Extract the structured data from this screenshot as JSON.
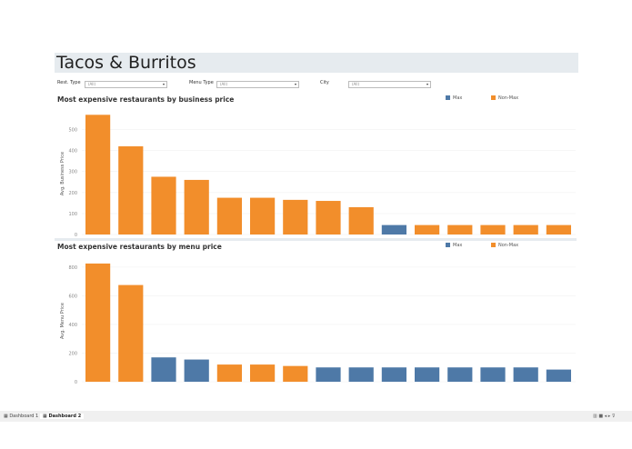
{
  "title": "Tacos & Burritos",
  "filters": [
    {
      "label": "Rest. Type",
      "value": "(All)"
    },
    {
      "label": "Menu Type",
      "value": "(All)"
    },
    {
      "label": "City",
      "value": "(All)"
    }
  ],
  "legend": {
    "max": "Max",
    "nonmax": "Non-Max"
  },
  "colors": {
    "max": "#4e79a7",
    "nonmax": "#f28e2b"
  },
  "tabs": [
    "Dashboard 1",
    "Dashboard 2"
  ],
  "chart_data": [
    {
      "type": "bar",
      "title": "Most expensive restaurants by business price",
      "ylabel": "Avg. Business Price",
      "ylim": [
        0,
        580
      ],
      "yticks": [
        0,
        100,
        200,
        300,
        400,
        500
      ],
      "values": [
        570,
        420,
        275,
        260,
        175,
        175,
        165,
        160,
        130,
        45,
        45,
        45,
        45,
        45,
        45
      ],
      "groups": [
        "Non-Max",
        "Non-Max",
        "Non-Max",
        "Non-Max",
        "Non-Max",
        "Non-Max",
        "Non-Max",
        "Non-Max",
        "Non-Max",
        "Max",
        "Non-Max",
        "Non-Max",
        "Non-Max",
        "Non-Max",
        "Non-Max"
      ],
      "legend": "top-right",
      "grid": true
    },
    {
      "type": "bar",
      "title": "Most expensive restaurants by menu price",
      "ylabel": "Avg. Menu Price",
      "ylim": [
        0,
        850
      ],
      "yticks": [
        0,
        200,
        400,
        600,
        800
      ],
      "values": [
        825,
        675,
        170,
        155,
        120,
        120,
        110,
        100,
        100,
        100,
        100,
        100,
        100,
        100,
        85
      ],
      "groups": [
        "Non-Max",
        "Non-Max",
        "Max",
        "Max",
        "Non-Max",
        "Non-Max",
        "Non-Max",
        "Max",
        "Max",
        "Max",
        "Max",
        "Max",
        "Max",
        "Max",
        "Max"
      ],
      "legend": "top-right",
      "grid": true
    }
  ]
}
